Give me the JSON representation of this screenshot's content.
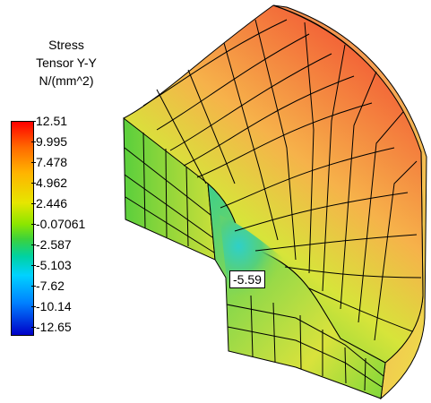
{
  "legend": {
    "title_lines": [
      "Stress",
      "Tensor Y-Y",
      "N/(mm^2)"
    ],
    "ticks": [
      "12.51",
      "9.995",
      "7.478",
      "4.962",
      "2.446",
      "-0.07061",
      "-2.587",
      "-5.103",
      "-7.62",
      "-10.14",
      "-12.65"
    ],
    "max": 12.51,
    "min": -12.65
  },
  "probe": {
    "value_label": "-5.59"
  },
  "colors": {
    "high": "#ff0000",
    "mid": "#3cd23c",
    "low": "#0000c8",
    "mesh_line": "#000000"
  }
}
